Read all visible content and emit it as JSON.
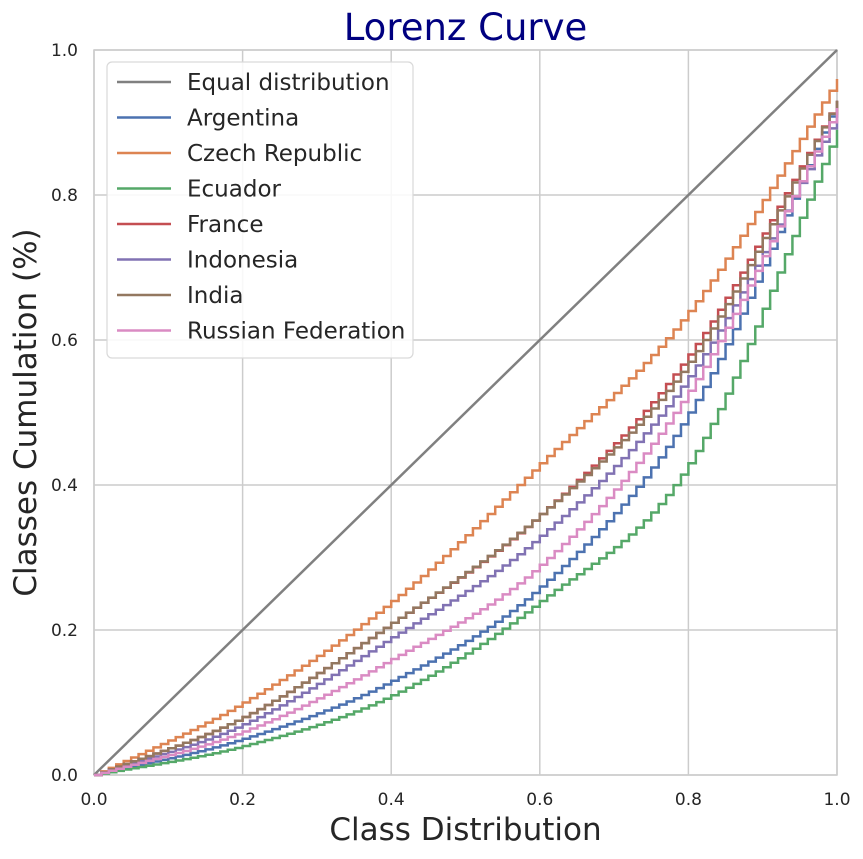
{
  "chart_data": {
    "type": "line",
    "title": "Lorenz Curve",
    "xlabel": "Class Distribution",
    "ylabel": "Classes Cumulation (%)",
    "xlim": [
      0.0,
      1.0
    ],
    "ylim": [
      0.0,
      1.0
    ],
    "xticks": [
      "0.0",
      "0.2",
      "0.4",
      "0.6",
      "0.8",
      "1.0"
    ],
    "yticks": [
      "0.0",
      "0.2",
      "0.4",
      "0.6",
      "0.8",
      "1.0"
    ],
    "grid": true,
    "legend_position": "top-left",
    "step_count": 100,
    "series": [
      {
        "name": "Equal distribution",
        "color": "#808080",
        "style": "diagonal",
        "x": [
          0.0,
          1.0
        ],
        "y": [
          0.0,
          1.0
        ]
      },
      {
        "name": "Argentina",
        "color": "#4c72b0",
        "style": "step",
        "x": [
          0.0,
          0.2,
          0.4,
          0.6,
          0.8,
          1.0
        ],
        "y": [
          0.0,
          0.05,
          0.13,
          0.26,
          0.5,
          0.93
        ]
      },
      {
        "name": "Czech Republic",
        "color": "#dd8452",
        "style": "step",
        "x": [
          0.0,
          0.2,
          0.4,
          0.6,
          0.8,
          1.0
        ],
        "y": [
          0.0,
          0.1,
          0.24,
          0.43,
          0.64,
          0.96
        ]
      },
      {
        "name": "Ecuador",
        "color": "#55a868",
        "style": "step",
        "x": [
          0.0,
          0.2,
          0.4,
          0.6,
          0.8,
          1.0
        ],
        "y": [
          0.0,
          0.04,
          0.11,
          0.24,
          0.43,
          0.89
        ]
      },
      {
        "name": "France",
        "color": "#c44e52",
        "style": "step",
        "x": [
          0.0,
          0.2,
          0.4,
          0.6,
          0.8,
          1.0
        ],
        "y": [
          0.0,
          0.08,
          0.21,
          0.36,
          0.58,
          0.93
        ]
      },
      {
        "name": "Indonesia",
        "color": "#8172b3",
        "style": "step",
        "x": [
          0.0,
          0.2,
          0.4,
          0.6,
          0.8,
          1.0
        ],
        "y": [
          0.0,
          0.07,
          0.19,
          0.33,
          0.55,
          0.91
        ]
      },
      {
        "name": "India",
        "color": "#937860",
        "style": "step",
        "x": [
          0.0,
          0.2,
          0.4,
          0.6,
          0.8,
          1.0
        ],
        "y": [
          0.0,
          0.08,
          0.21,
          0.36,
          0.57,
          0.93
        ]
      },
      {
        "name": "Russian Federation",
        "color": "#da8bc3",
        "style": "step",
        "x": [
          0.0,
          0.2,
          0.4,
          0.6,
          0.8,
          1.0
        ],
        "y": [
          0.0,
          0.06,
          0.16,
          0.29,
          0.53,
          0.92
        ]
      }
    ]
  }
}
